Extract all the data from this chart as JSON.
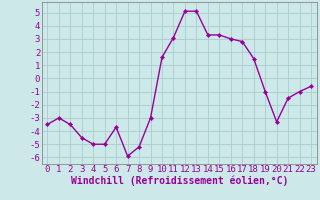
{
  "x": [
    0,
    1,
    2,
    3,
    4,
    5,
    6,
    7,
    8,
    9,
    10,
    11,
    12,
    13,
    14,
    15,
    16,
    17,
    18,
    19,
    20,
    21,
    22,
    23
  ],
  "y": [
    -3.5,
    -3.0,
    -3.5,
    -4.5,
    -5.0,
    -5.0,
    -3.7,
    -5.9,
    -5.2,
    -3.0,
    1.6,
    3.1,
    5.1,
    5.1,
    3.3,
    3.3,
    3.0,
    2.8,
    1.5,
    -1.0,
    -3.3,
    -1.5,
    -1.0,
    -0.6
  ],
  "line_color": "#990099",
  "marker": "D",
  "marker_size": 2.2,
  "bg_color": "#cce8e8",
  "grid_color": "#aacccc",
  "xlabel": "Windchill (Refroidissement éolien,°C)",
  "xlim": [
    -0.5,
    23.5
  ],
  "ylim": [
    -6.5,
    5.8
  ],
  "xticks": [
    0,
    1,
    2,
    3,
    4,
    5,
    6,
    7,
    8,
    9,
    10,
    11,
    12,
    13,
    14,
    15,
    16,
    17,
    18,
    19,
    20,
    21,
    22,
    23
  ],
  "yticks": [
    -6,
    -5,
    -4,
    -3,
    -2,
    -1,
    0,
    1,
    2,
    3,
    4,
    5
  ],
  "tick_fontsize": 6.5,
  "xlabel_fontsize": 7.0,
  "line_width": 1.0
}
